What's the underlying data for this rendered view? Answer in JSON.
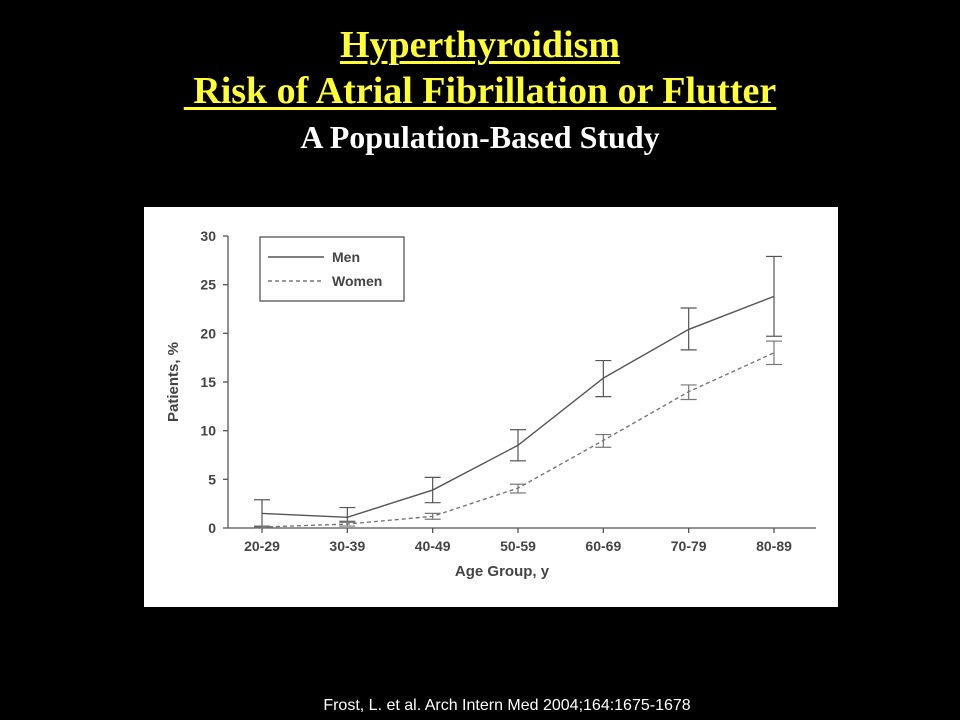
{
  "slide": {
    "title_line1": "Hyperthyroidism",
    "title_line2": " Risk of Atrial Fibrillation or Flutter",
    "subtitle": "A Population-Based Study",
    "citation": "Frost, L. et al. Arch Intern Med 2004;164:1675-1678",
    "colors": {
      "background": "#000000",
      "title": "#ffff33",
      "subtitle": "#ffffff",
      "chart_bg": "#ffffff"
    }
  },
  "chart_data": {
    "type": "line",
    "categories": [
      "20-29",
      "30-39",
      "40-49",
      "50-59",
      "60-69",
      "70-79",
      "80-89"
    ],
    "xlabel": "Age Group, y",
    "ylabel": "Patients, %",
    "ylim": [
      0,
      30
    ],
    "yticks": [
      0,
      5,
      10,
      15,
      20,
      25,
      30
    ],
    "grid": false,
    "legend_position": "top-left",
    "series": [
      {
        "name": "Men",
        "style": "solid",
        "values": [
          1.5,
          1.1,
          3.9,
          8.5,
          15.4,
          20.4,
          23.8
        ],
        "error_low": [
          0.1,
          0.6,
          2.6,
          6.9,
          13.5,
          18.3,
          19.7
        ],
        "error_high": [
          2.9,
          2.1,
          5.2,
          10.1,
          17.2,
          22.6,
          27.9
        ]
      },
      {
        "name": "Women",
        "style": "dashed",
        "values": [
          0.1,
          0.4,
          1.2,
          4.1,
          9.0,
          14.0,
          18.0
        ],
        "error_low": [
          0.0,
          0.2,
          0.9,
          3.6,
          8.3,
          13.2,
          16.8
        ],
        "error_high": [
          0.2,
          0.7,
          1.5,
          4.5,
          9.6,
          14.7,
          19.2
        ]
      }
    ]
  }
}
